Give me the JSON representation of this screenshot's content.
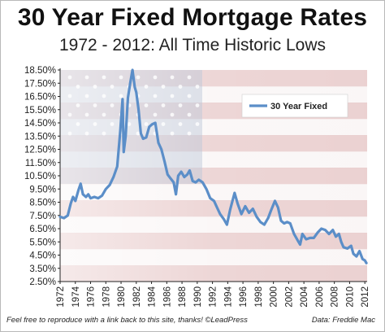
{
  "header": {
    "title": "30 Year Fixed Mortgage Rates",
    "subtitle": "1972 - 2012: All Time Historic Lows"
  },
  "footer": {
    "credit": "Feel free to reproduce with a link back to this site, thanks! ©LeadPress",
    "source": "Data: Freddie Mac"
  },
  "colors": {
    "line": "#5b8ec8",
    "axis": "#222222",
    "flag_red": "#d9a7a7",
    "flag_white": "#f6eeee",
    "flag_blue": "#aab8cf"
  },
  "chart_data": {
    "type": "line",
    "title": "30 Year Fixed Mortgage Rates",
    "xlabel": "",
    "ylabel": "",
    "xlim": [
      1972,
      2012.3
    ],
    "ylim": [
      2.5,
      18.5
    ],
    "grid": false,
    "legend_position": "top-right",
    "x_tick_labels": [
      "1972",
      "1974",
      "1976",
      "1978",
      "1980",
      "1982",
      "1984",
      "1986",
      "1988",
      "1990",
      "1992",
      "1994",
      "1996",
      "1998",
      "2000",
      "2002",
      "2004",
      "2006",
      "2008",
      "2010",
      "2012"
    ],
    "y_tick_labels": [
      "18.50%",
      "17.50%",
      "16.50%",
      "15.50%",
      "14.50%",
      "13.50%",
      "12.50%",
      "11.50%",
      "10.50%",
      "9.50%",
      "8.50%",
      "7.50%",
      "6.50%",
      "5.50%",
      "4.50%",
      "3.50%",
      "2.50%"
    ],
    "series": [
      {
        "name": "30 Year Fixed",
        "x": [
          1972.0,
          1972.5,
          1973.0,
          1973.4,
          1973.7,
          1974.0,
          1974.4,
          1974.7,
          1975.0,
          1975.4,
          1975.7,
          1976.0,
          1976.5,
          1977.0,
          1977.5,
          1978.0,
          1978.5,
          1979.0,
          1979.5,
          1979.9,
          1980.2,
          1980.35,
          1980.6,
          1980.9,
          1981.2,
          1981.5,
          1981.8,
          1982.0,
          1982.3,
          1982.6,
          1982.9,
          1983.3,
          1983.7,
          1984.1,
          1984.5,
          1984.9,
          1985.3,
          1985.7,
          1986.1,
          1986.5,
          1986.9,
          1987.2,
          1987.5,
          1987.9,
          1988.3,
          1988.7,
          1989.0,
          1989.4,
          1989.8,
          1990.2,
          1990.7,
          1991.2,
          1991.7,
          1992.2,
          1992.6,
          1993.0,
          1993.5,
          1993.9,
          1994.3,
          1994.9,
          1995.3,
          1995.8,
          1996.3,
          1996.8,
          1997.3,
          1997.8,
          1998.3,
          1998.8,
          1999.3,
          1999.7,
          2000.2,
          2000.6,
          2001.0,
          2001.4,
          2001.8,
          2002.2,
          2002.7,
          2003.2,
          2003.5,
          2003.8,
          2004.3,
          2004.8,
          2005.3,
          2005.8,
          2006.3,
          2006.8,
          2007.3,
          2007.8,
          2008.2,
          2008.6,
          2008.9,
          2009.2,
          2009.7,
          2010.2,
          2010.5,
          2010.9,
          2011.3,
          2011.7,
          2012.0,
          2012.2
        ],
        "values": [
          7.4,
          7.3,
          7.5,
          8.4,
          8.9,
          8.6,
          9.4,
          9.9,
          9.1,
          8.9,
          9.1,
          8.8,
          8.9,
          8.8,
          9.0,
          9.5,
          9.8,
          10.4,
          11.2,
          13.9,
          16.3,
          12.3,
          13.5,
          16.4,
          17.5,
          18.5,
          17.2,
          16.8,
          15.5,
          13.7,
          13.3,
          13.4,
          14.2,
          14.4,
          14.5,
          13.0,
          12.5,
          11.6,
          10.6,
          10.3,
          10.0,
          9.1,
          10.5,
          10.8,
          10.4,
          10.6,
          10.9,
          10.1,
          10.0,
          10.2,
          10.0,
          9.5,
          8.8,
          8.6,
          8.1,
          7.6,
          7.2,
          6.8,
          7.9,
          9.2,
          8.4,
          7.6,
          8.2,
          7.7,
          8.0,
          7.4,
          7.0,
          6.8,
          7.3,
          7.9,
          8.6,
          8.1,
          7.1,
          6.9,
          7.0,
          6.9,
          6.1,
          5.6,
          5.3,
          6.1,
          5.7,
          5.8,
          5.8,
          6.2,
          6.5,
          6.4,
          6.1,
          6.4,
          5.9,
          6.1,
          5.5,
          5.1,
          5.0,
          5.2,
          4.6,
          4.4,
          4.8,
          4.2,
          4.1,
          3.9
        ]
      }
    ]
  }
}
